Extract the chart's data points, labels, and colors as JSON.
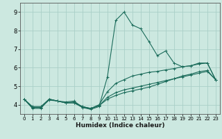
{
  "title": "",
  "xlabel": "Humidex (Indice chaleur)",
  "ylabel": "",
  "xlim": [
    -0.5,
    23.5
  ],
  "ylim": [
    3.5,
    9.5
  ],
  "xticks": [
    0,
    1,
    2,
    3,
    4,
    5,
    6,
    7,
    8,
    9,
    10,
    11,
    12,
    13,
    14,
    15,
    16,
    17,
    18,
    19,
    20,
    21,
    22,
    23
  ],
  "yticks": [
    4,
    5,
    6,
    7,
    8,
    9
  ],
  "bg_color": "#cce8e0",
  "grid_color": "#aacfc8",
  "line_color": "#1a6b5a",
  "curves": [
    {
      "x": [
        0,
        1,
        2,
        3,
        4,
        5,
        6,
        7,
        8,
        9,
        10,
        11,
        12,
        13,
        14,
        15,
        16,
        17,
        18,
        19,
        20,
        21,
        22,
        23
      ],
      "y": [
        4.3,
        3.8,
        3.8,
        4.3,
        4.2,
        4.15,
        4.2,
        3.85,
        3.75,
        3.9,
        5.5,
        8.55,
        9.0,
        8.3,
        8.1,
        7.4,
        6.65,
        6.9,
        6.25,
        6.05,
        6.1,
        6.25,
        6.25,
        5.35
      ]
    },
    {
      "x": [
        0,
        1,
        2,
        3,
        4,
        5,
        6,
        7,
        8,
        9,
        10,
        11,
        12,
        13,
        14,
        15,
        16,
        17,
        18,
        19,
        20,
        21,
        22,
        23
      ],
      "y": [
        4.3,
        3.9,
        3.9,
        4.3,
        4.2,
        4.1,
        4.1,
        3.9,
        3.8,
        4.0,
        4.7,
        5.15,
        5.35,
        5.55,
        5.65,
        5.75,
        5.8,
        5.88,
        5.95,
        6.05,
        6.1,
        6.2,
        6.25,
        5.35
      ]
    },
    {
      "x": [
        0,
        1,
        2,
        3,
        4,
        5,
        6,
        7,
        8,
        9,
        10,
        11,
        12,
        13,
        14,
        15,
        16,
        17,
        18,
        19,
        20,
        21,
        22,
        23
      ],
      "y": [
        4.3,
        3.85,
        3.85,
        4.25,
        4.2,
        4.1,
        4.15,
        3.9,
        3.8,
        3.95,
        4.4,
        4.65,
        4.8,
        4.9,
        5.0,
        5.1,
        5.2,
        5.3,
        5.4,
        5.5,
        5.6,
        5.7,
        5.8,
        5.35
      ]
    },
    {
      "x": [
        0,
        1,
        2,
        3,
        4,
        5,
        6,
        7,
        8,
        9,
        10,
        11,
        12,
        13,
        14,
        15,
        16,
        17,
        18,
        19,
        20,
        21,
        22,
        23
      ],
      "y": [
        4.3,
        3.85,
        3.85,
        4.3,
        4.2,
        4.1,
        4.1,
        3.85,
        3.8,
        3.95,
        4.3,
        4.5,
        4.65,
        4.75,
        4.85,
        4.95,
        5.1,
        5.25,
        5.4,
        5.55,
        5.65,
        5.78,
        5.85,
        5.35
      ]
    }
  ]
}
